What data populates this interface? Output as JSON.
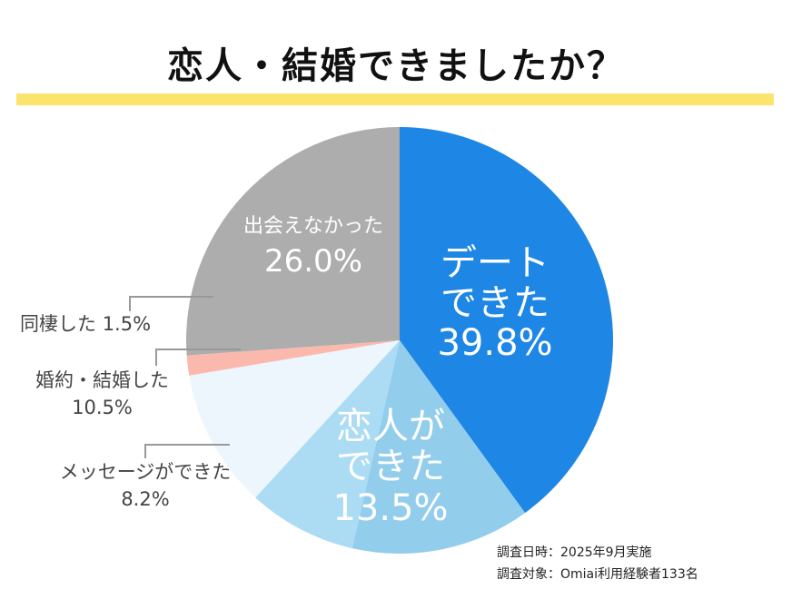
{
  "chart_data": {
    "type": "pie",
    "title": "恋人・結婚できましたか？",
    "slices": [
      {
        "label_lines": [
          "デート",
          "できた"
        ],
        "value": 39.8,
        "value_label": "39.8%",
        "color": "#1e86e4"
      },
      {
        "label_lines": [
          "恋人が",
          "できた"
        ],
        "value": 13.5,
        "value_label": "13.5%",
        "color": "#92cdeb"
      },
      {
        "label_lines": [
          "メッセージができた"
        ],
        "value": 8.2,
        "value_label": "8.2%",
        "color": "#acdcf4"
      },
      {
        "label_lines": [
          "婚約・結婚した"
        ],
        "value": 10.5,
        "value_label": "10.5%",
        "color": "#eef6fd"
      },
      {
        "label_lines": [
          "同棲した"
        ],
        "value": 1.5,
        "value_label": "1.5%",
        "color": "#fbb9ae"
      },
      {
        "label_lines": [
          "出会えなかった"
        ],
        "value": 26.0,
        "value_label": "26.0%",
        "color": "#adadad"
      }
    ],
    "start_angle": "12 o'clock",
    "direction": "clockwise",
    "legend": "none"
  },
  "notes": {
    "date": "調査日時：2025年9月実施",
    "target": "調査対象：Omiai利用経験者133名"
  },
  "colors": {
    "title_underline": "#fce46c",
    "leader_line": "#999999"
  }
}
